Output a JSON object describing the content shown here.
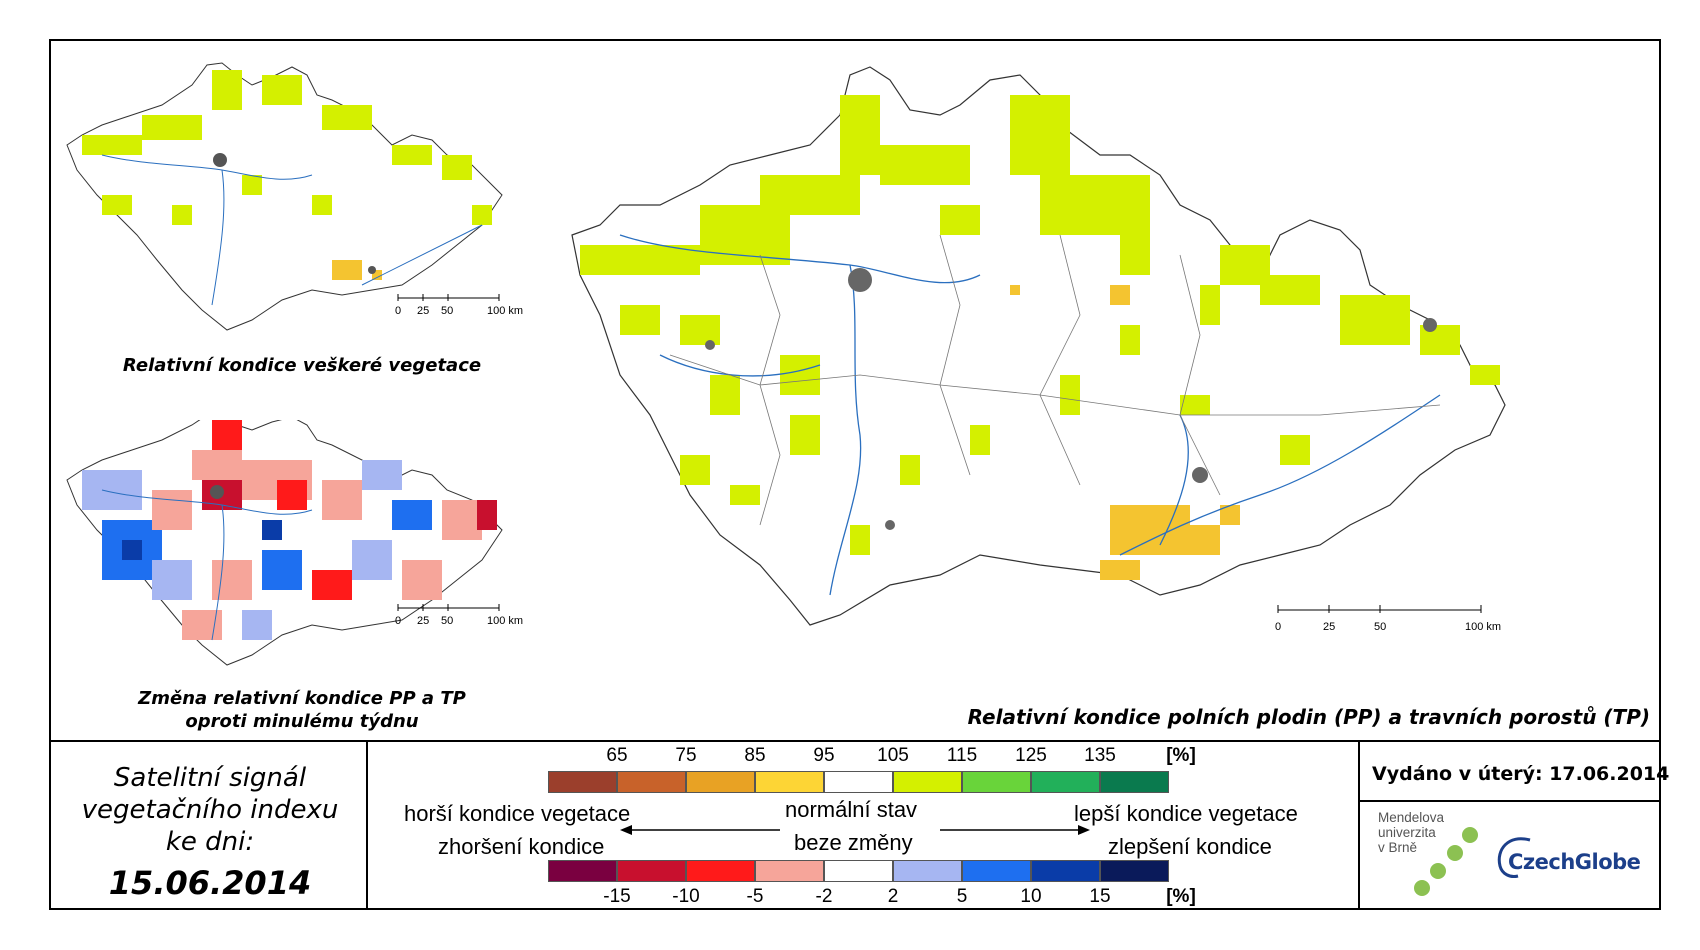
{
  "main_map": {
    "caption": "Relativní kondice polních plodin (PP) a travních porostů (TP)",
    "scale": [
      "0",
      "25",
      "50",
      "100 km"
    ]
  },
  "inset_top": {
    "caption": "Relativní kondice veškeré vegetace",
    "scale": [
      "0",
      "25",
      "50",
      "100 km"
    ]
  },
  "inset_bottom": {
    "caption_line1": "Změna relativní kondice PP a TP",
    "caption_line2": "oproti minulému týdnu",
    "scale": [
      "0",
      "25",
      "50",
      "100 km"
    ]
  },
  "date_panel": {
    "title_line1": "Satelitní signál",
    "title_line2": "vegetačního indexu",
    "title_line3": "ke dni:",
    "date": "15.06.2014"
  },
  "legend": {
    "condition_ticks": [
      "65",
      "75",
      "85",
      "95",
      "105",
      "115",
      "125",
      "135"
    ],
    "unit": "[%]",
    "condition_colors": [
      "#9b3f2c",
      "#c8622a",
      "#e8a224",
      "#fdd535",
      "#ffffff",
      "#d4f000",
      "#69d43a",
      "#22b05a",
      "#0a7a4e"
    ],
    "change_ticks": [
      "-15",
      "-10",
      "-5",
      "-2",
      "2",
      "5",
      "10",
      "15"
    ],
    "change_colors": [
      "#7a0040",
      "#c8102e",
      "#ff1a1a",
      "#f6a59a",
      "#ffffff",
      "#a6b6f2",
      "#1e6ff0",
      "#0a3ca8",
      "#0a1a5a"
    ],
    "worse_label": "horší kondice vegetace",
    "worse_change_label": "zhoršení kondice",
    "normal_label": "normální stav",
    "nochange_label": "beze změny",
    "better_label": "lepší kondice vegetace",
    "better_change_label": "zlepšení kondice"
  },
  "issue": {
    "label": "Vydáno v úterý: 17.06.2014"
  },
  "logos": {
    "mendel_line1": "Mendelova",
    "mendel_line2": "univerzita",
    "mendel_line3": "v Brně",
    "czechglobe": "CzechGlobe"
  }
}
